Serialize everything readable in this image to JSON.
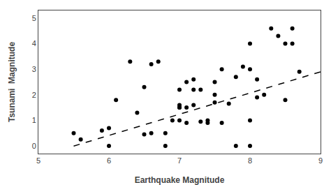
{
  "chart_data": {
    "type": "scatter",
    "xlabel": "Earthquake Magnitude",
    "ylabel": "Tsunami  Magnitude",
    "xlim": [
      5,
      9
    ],
    "ylim": [
      -0.3,
      5.3
    ],
    "xticks": [
      5,
      6,
      7,
      8,
      9
    ],
    "yticks": [
      0,
      1,
      2,
      3,
      4,
      5
    ],
    "grid": false,
    "series": [
      {
        "type": "scatter",
        "color": "#000000",
        "marker": "circle",
        "x": [
          5.5,
          5.6,
          5.9,
          6.0,
          6.0,
          6.1,
          6.3,
          6.4,
          6.5,
          6.5,
          6.6,
          6.6,
          6.7,
          6.8,
          6.8,
          6.9,
          7.0,
          7.0,
          7.0,
          7.0,
          7.0,
          7.1,
          7.1,
          7.1,
          7.2,
          7.2,
          7.2,
          7.3,
          7.3,
          7.4,
          7.4,
          7.5,
          7.5,
          7.5,
          7.6,
          7.6,
          7.7,
          7.8,
          7.8,
          7.9,
          8.0,
          8.0,
          8.0,
          8.0,
          8.1,
          8.1,
          8.2,
          8.3,
          8.4,
          8.5,
          8.5,
          8.6,
          8.6,
          8.7
        ],
        "values": [
          0.5,
          0.25,
          0.6,
          0.0,
          0.7,
          1.8,
          3.3,
          1.3,
          2.3,
          0.45,
          3.2,
          0.5,
          3.3,
          0.0,
          0.5,
          1.0,
          1.5,
          1.6,
          2.2,
          1.5,
          1.0,
          2.5,
          1.5,
          0.9,
          2.6,
          2.2,
          1.6,
          2.2,
          0.95,
          1.0,
          0.9,
          1.7,
          2.5,
          2.0,
          0.9,
          3.0,
          1.65,
          2.7,
          0.0,
          3.1,
          0.0,
          1.0,
          4.0,
          3.0,
          2.6,
          1.9,
          2.0,
          4.6,
          4.3,
          4.0,
          1.8,
          4.6,
          4.0,
          2.9
        ]
      },
      {
        "type": "line",
        "color": "#000000",
        "line_style": "dashed",
        "x": [
          5.5,
          9.0
        ],
        "values": [
          -0.005,
          2.9
        ]
      }
    ]
  }
}
